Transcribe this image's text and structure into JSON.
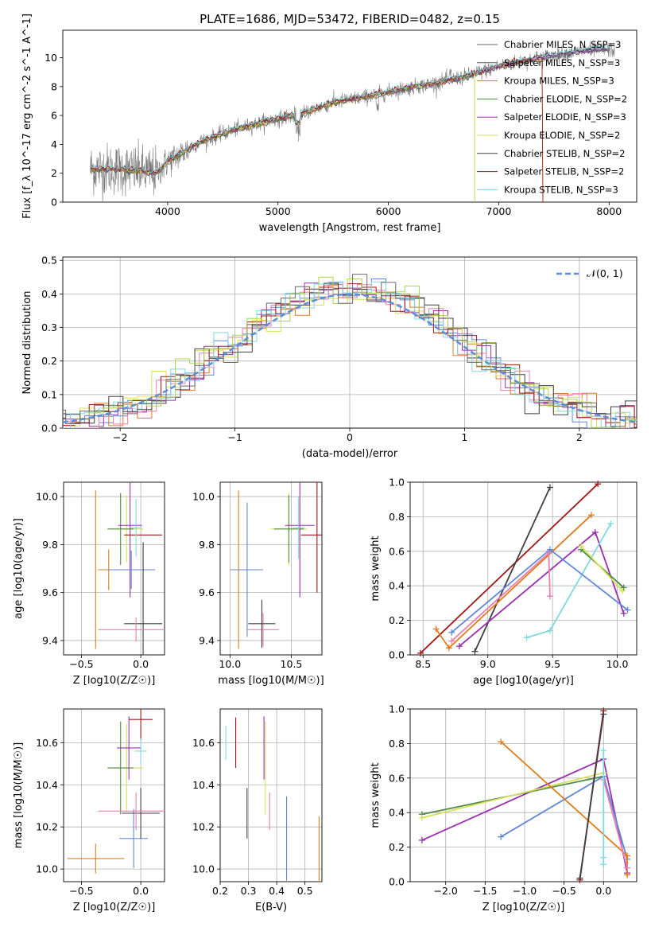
{
  "figure_title": "PLATE=1686, MJD=53472, FIBERID=0482, z=0.15",
  "colors": {
    "Chabrier MILES": "#6a6a6a",
    "Salpeter MILES": "#5a5a5a",
    "Kroupa MILES": "#e07b1a",
    "Chabrier ELODIE": "#4f8a45",
    "Salpeter ELODIE": "#9b2fb0",
    "Kroupa ELODIE": "#d8e05a",
    "Chabrier STELIB": "#404040",
    "Salpeter STELIB": "#a01818",
    "Kroupa STELIB": "#80d8e0",
    "blue": "#5f87d8",
    "pink": "#e87fb0",
    "lime": "#a8d848"
  },
  "chart_data": [
    {
      "id": "spectrum",
      "type": "line",
      "title": "PLATE=1686, MJD=53472, FIBERID=0482, z=0.15",
      "xlabel": "wavelength [Angstrom, rest frame]",
      "ylabel": "Flux [f_λ 10^-17 erg cm^-2 s^-1 A^-1]",
      "xlim": [
        3050,
        8250
      ],
      "ylim": [
        0,
        11.9
      ],
      "xticks": [
        4000,
        5000,
        6000,
        7000,
        8000
      ],
      "yticks": [
        0,
        2,
        4,
        6,
        8,
        10
      ],
      "grid": false,
      "legend_position": "top-right",
      "legend": [
        "Chabrier MILES, N_SSP=3",
        "Salpeter MILES, N_SSP=3",
        "Kroupa MILES, N_SSP=3",
        "Chabrier ELODIE, N_SSP=2",
        "Salpeter ELODIE, N_SSP=3",
        "Kroupa ELODIE, N_SSP=2",
        "Chabrier STELIB, N_SSP=2",
        "Salpeter STELIB, N_SSP=2",
        "Kroupa STELIB, N_SSP=3"
      ],
      "legend_colors": [
        "#6a6a6a",
        "#5a5a5a",
        "#e07b1a",
        "#4f8a45",
        "#9b2fb0",
        "#d8e05a",
        "#404040",
        "#a01818",
        "#80d8e0"
      ],
      "data_trend": {
        "x": [
          3300,
          3500,
          3700,
          3900,
          4000,
          4300,
          4600,
          4900,
          5200,
          5500,
          5800,
          6100,
          6400,
          6700,
          7000,
          7300,
          7600,
          7900,
          8050
        ],
        "y": [
          2.3,
          2.3,
          2.2,
          2.0,
          2.8,
          4.2,
          5.0,
          5.6,
          6.1,
          6.9,
          7.3,
          7.8,
          8.2,
          8.7,
          9.4,
          9.9,
          10.3,
          10.6,
          10.5
        ]
      },
      "model_end_wavelengths": [
        8000,
        8000,
        7400,
        6780,
        8000,
        6780,
        8000,
        7400,
        8000
      ]
    },
    {
      "id": "residuals",
      "type": "bar",
      "xlabel": "(data-model)/error",
      "ylabel": "Normed distribution",
      "xlim": [
        -2.5,
        2.5
      ],
      "ylim": [
        0,
        0.51
      ],
      "xticks": [
        -2,
        -1,
        0,
        1,
        2
      ],
      "yticks": [
        0.0,
        0.1,
        0.2,
        0.3,
        0.4,
        0.5
      ],
      "grid": true,
      "legend_position": "top-right",
      "legend": [
        "𝒩(0, 1)"
      ],
      "normal_curve": true
    },
    {
      "id": "age_vs_Z",
      "type": "scatter",
      "xlabel": "Z [log10(Z/Z☉)]",
      "ylabel": "age [log10(age/yr)]",
      "xlim": [
        -0.65,
        0.2
      ],
      "ylim": [
        9.34,
        10.06
      ],
      "xticks": [
        -0.5,
        0.0
      ],
      "xtick_labels": [
        "−0.5",
        "0.0"
      ],
      "yticks": [
        9.4,
        9.6,
        9.8,
        10.0
      ],
      "grid": true,
      "points": [
        {
          "x": -0.27,
          "y": 9.695,
          "xerr": 0.09,
          "yerr": 0.085,
          "color": "#e07b1a"
        },
        {
          "x": -0.08,
          "y": 9.695,
          "xerr": 0.2,
          "yerr": 0.08,
          "color": "#5f87d8"
        },
        {
          "x": -0.38,
          "y": 9.695,
          "xerr": 0.0,
          "yerr": 0.33,
          "color": "#e07b1a"
        },
        {
          "x": -0.12,
          "y": 9.865,
          "xerr": 0.14,
          "yerr": 0.14,
          "color": "#d8e05a"
        },
        {
          "x": -0.17,
          "y": 9.865,
          "xerr": 0.11,
          "yerr": 0.15,
          "color": "#4f8a45"
        },
        {
          "x": -0.09,
          "y": 9.88,
          "xerr": 0.1,
          "yerr": 0.3,
          "color": "#9b2fb0"
        },
        {
          "x": 0.02,
          "y": 9.84,
          "xerr": 0.16,
          "yerr": 0.0,
          "color": "#a01818"
        },
        {
          "x": 0.02,
          "y": 9.47,
          "xerr": 0.16,
          "yerr": 0.34,
          "color": "#404040"
        },
        {
          "x": -0.04,
          "y": 9.445,
          "xerr": 0.32,
          "yerr": 0.05,
          "color": "#e87fb0"
        },
        {
          "x": -0.04,
          "y": 9.87,
          "xerr": 0.05,
          "yerr": 0.12,
          "color": "#80d8e0"
        }
      ]
    },
    {
      "id": "age_vs_mass",
      "type": "scatter",
      "xlabel": "mass [log10(M/M☉)]",
      "ylabel": "",
      "xlim": [
        9.92,
        10.75
      ],
      "ylim": [
        9.34,
        10.06
      ],
      "xticks": [
        10.0,
        10.5
      ],
      "xtick_labels": [
        "10.0",
        "10.5"
      ],
      "yticks": [
        9.4,
        9.6,
        9.8,
        10.0
      ],
      "grid": true,
      "points": [
        {
          "x": 10.07,
          "y": 9.695,
          "xerr": 0.07,
          "yerr": 0.33,
          "color": "#e07b1a"
        },
        {
          "x": 10.14,
          "y": 9.695,
          "xerr": 0.13,
          "yerr": 0.28,
          "color": "#5f87d8"
        },
        {
          "x": 10.27,
          "y": 9.445,
          "xerr": 0.13,
          "yerr": 0.07,
          "color": "#e87fb0"
        },
        {
          "x": 10.26,
          "y": 9.47,
          "xerr": 0.11,
          "yerr": 0.1,
          "color": "#404040"
        },
        {
          "x": 10.48,
          "y": 9.865,
          "xerr": 0.15,
          "yerr": 0.15,
          "color": "#d8e05a"
        },
        {
          "x": 10.48,
          "y": 9.865,
          "xerr": 0.12,
          "yerr": 0.14,
          "color": "#4f8a45"
        },
        {
          "x": 10.57,
          "y": 9.88,
          "xerr": 0.12,
          "yerr": 0.3,
          "color": "#9b2fb0"
        },
        {
          "x": 10.71,
          "y": 9.84,
          "xerr": 0.13,
          "yerr": 0.24,
          "color": "#a01818"
        },
        {
          "x": 10.56,
          "y": 9.87,
          "xerr": 0.05,
          "yerr": 0.13,
          "color": "#80d8e0"
        }
      ]
    },
    {
      "id": "massweight_vs_age",
      "type": "line",
      "xlabel": "age [log10(age/yr)]",
      "ylabel": "mass weight",
      "xlim": [
        8.4,
        10.15
      ],
      "ylim": [
        0.0,
        1.0
      ],
      "xticks": [
        8.5,
        9.0,
        9.5,
        10.0
      ],
      "xtick_labels": [
        "8.5",
        "9.0",
        "9.5",
        "10.0"
      ],
      "yticks": [
        0.0,
        0.2,
        0.4,
        0.6,
        0.8,
        1.0
      ],
      "grid": true,
      "series": [
        {
          "color": "#a01818",
          "x": [
            8.48,
            9.85
          ],
          "y": [
            0.01,
            0.99
          ]
        },
        {
          "color": "#404040",
          "x": [
            8.9,
            9.48
          ],
          "y": [
            0.02,
            0.97
          ]
        },
        {
          "color": "#e07b1a",
          "x": [
            8.6,
            8.7,
            9.8
          ],
          "y": [
            0.15,
            0.04,
            0.81
          ]
        },
        {
          "color": "#9b2fb0",
          "x": [
            8.78,
            9.83,
            10.05
          ],
          "y": [
            0.05,
            0.71,
            0.24
          ]
        },
        {
          "color": "#80d8e0",
          "x": [
            9.3,
            9.48,
            9.95
          ],
          "y": [
            0.1,
            0.14,
            0.76
          ]
        },
        {
          "color": "#5f87d8",
          "x": [
            8.72,
            9.48,
            10.08
          ],
          "y": [
            0.13,
            0.61,
            0.26
          ]
        },
        {
          "color": "#e87fb0",
          "x": [
            8.72,
            9.47,
            9.48
          ],
          "y": [
            0.08,
            0.59,
            0.34
          ]
        },
        {
          "color": "#4f8a45",
          "x": [
            9.72,
            10.05
          ],
          "y": [
            0.61,
            0.39
          ]
        },
        {
          "color": "#d8e05a",
          "x": [
            9.72,
            10.04
          ],
          "y": [
            0.63,
            0.37
          ]
        }
      ]
    },
    {
      "id": "mass_vs_Z",
      "type": "scatter",
      "xlabel": "Z [log10(Z/Z☉)]",
      "ylabel": "mass [log10(M/M☉)]",
      "xlim": [
        -0.65,
        0.2
      ],
      "ylim": [
        9.94,
        10.76
      ],
      "xticks": [
        -0.5,
        0.0
      ],
      "xtick_labels": [
        "−0.5",
        "0.0"
      ],
      "yticks": [
        10.0,
        10.2,
        10.4,
        10.6
      ],
      "grid": true,
      "points": [
        {
          "x": -0.38,
          "y": 10.05,
          "xerr": 0.24,
          "yerr": 0.07,
          "color": "#e07b1a"
        },
        {
          "x": -0.06,
          "y": 10.145,
          "xerr": 0.12,
          "yerr": 0.14,
          "color": "#5f87d8"
        },
        {
          "x": -0.12,
          "y": 10.48,
          "xerr": 0.14,
          "yerr": 0.21,
          "color": "#d8e05a"
        },
        {
          "x": -0.17,
          "y": 10.48,
          "xerr": 0.11,
          "yerr": 0.22,
          "color": "#4f8a45"
        },
        {
          "x": -0.1,
          "y": 10.575,
          "xerr": 0.1,
          "yerr": 0.15,
          "color": "#9b2fb0"
        },
        {
          "x": 0.0,
          "y": 10.71,
          "xerr": 0.1,
          "yerr": 0.1,
          "color": "#a01818"
        },
        {
          "x": 0.0,
          "y": 10.265,
          "xerr": 0.16,
          "yerr": 0.12,
          "color": "#404040"
        },
        {
          "x": -0.04,
          "y": 10.275,
          "xerr": 0.32,
          "yerr": 0.09,
          "color": "#e87fb0"
        },
        {
          "x": 0.0,
          "y": 10.56,
          "xerr": 0.05,
          "yerr": 0.06,
          "color": "#80d8e0"
        }
      ]
    },
    {
      "id": "mass_vs_EBV",
      "type": "scatter",
      "xlabel": "E(B-V)",
      "ylabel": "",
      "xlim": [
        0.2,
        0.56
      ],
      "ylim": [
        9.94,
        10.76
      ],
      "xticks": [
        0.2,
        0.3,
        0.4,
        0.5
      ],
      "xtick_labels": [
        "0.2",
        "0.3",
        "0.4",
        "0.5"
      ],
      "yticks": [
        10.0,
        10.2,
        10.4,
        10.6
      ],
      "grid": true,
      "points": [
        {
          "x": 0.22,
          "y": 10.6,
          "xerr": 0.0,
          "yerr": 0.08,
          "color": "#80d8e0"
        },
        {
          "x": 0.255,
          "y": 10.6,
          "xerr": 0.0,
          "yerr": 0.12,
          "color": "#a01818"
        },
        {
          "x": 0.295,
          "y": 10.265,
          "xerr": 0.0,
          "yerr": 0.12,
          "color": "#404040"
        },
        {
          "x": 0.355,
          "y": 10.575,
          "xerr": 0.0,
          "yerr": 0.15,
          "color": "#9b2fb0"
        },
        {
          "x": 0.36,
          "y": 10.48,
          "xerr": 0.0,
          "yerr": 0.22,
          "color": "#d8e05a"
        },
        {
          "x": 0.375,
          "y": 10.275,
          "xerr": 0.0,
          "yerr": 0.09,
          "color": "#e87fb0"
        },
        {
          "x": 0.435,
          "y": 10.145,
          "xerr": 0.0,
          "yerr": 0.2,
          "color": "#5f87d8"
        },
        {
          "x": 0.55,
          "y": 10.05,
          "xerr": 0.0,
          "yerr": 0.2,
          "color": "#e07b1a"
        }
      ]
    },
    {
      "id": "massweight_vs_Z",
      "type": "line",
      "xlabel": "Z [log10(Z/Z☉)]",
      "ylabel": "mass weight",
      "xlim": [
        -2.45,
        0.42
      ],
      "ylim": [
        0.0,
        1.0
      ],
      "xticks": [
        -2.0,
        -1.5,
        -1.0,
        -0.5,
        0.0
      ],
      "xtick_labels": [
        "−2.0",
        "−1.5",
        "−1.0",
        "−0.5",
        "0.0"
      ],
      "yticks": [
        0.0,
        0.2,
        0.4,
        0.6,
        0.8,
        1.0
      ],
      "grid": true,
      "series": [
        {
          "color": "#9b2fb0",
          "x": [
            -2.3,
            0.0,
            0.3
          ],
          "y": [
            0.24,
            0.71,
            0.05
          ]
        },
        {
          "color": "#4f8a45",
          "x": [
            -2.3,
            0.0
          ],
          "y": [
            0.39,
            0.61
          ]
        },
        {
          "color": "#d8e05a",
          "x": [
            -2.3,
            0.0
          ],
          "y": [
            0.37,
            0.63
          ]
        },
        {
          "color": "#5f87d8",
          "x": [
            -1.3,
            0.0,
            0.3
          ],
          "y": [
            0.26,
            0.61,
            0.13
          ]
        },
        {
          "color": "#e07b1a",
          "x": [
            -1.3,
            0.3,
            0.3
          ],
          "y": [
            0.81,
            0.15,
            0.04
          ]
        },
        {
          "color": "#a01818",
          "x": [
            -0.3,
            0.0
          ],
          "y": [
            0.01,
            0.99
          ]
        },
        {
          "color": "#404040",
          "x": [
            -0.3,
            0.0
          ],
          "y": [
            0.02,
            0.97
          ]
        },
        {
          "color": "#e87fb0",
          "x": [
            0.0,
            0.3
          ],
          "y": [
            0.59,
            0.08
          ]
        },
        {
          "color": "#80d8e0",
          "x": [
            0.0,
            0.0,
            0.0
          ],
          "y": [
            0.76,
            0.14,
            0.1
          ]
        }
      ]
    }
  ]
}
